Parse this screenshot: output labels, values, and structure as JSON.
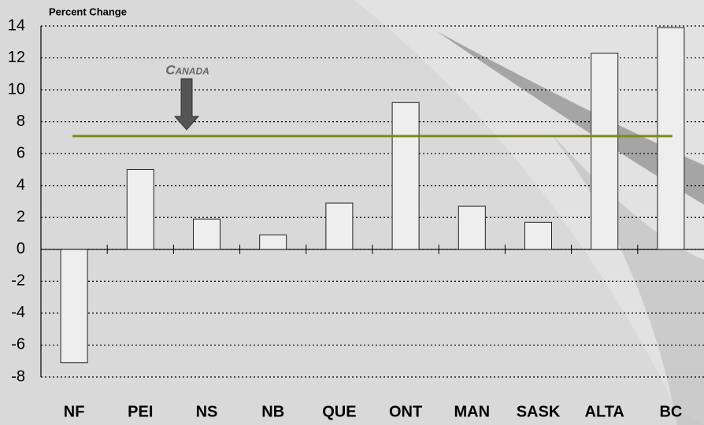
{
  "chart_data": {
    "type": "bar",
    "y_axis_label": "Percent Change",
    "categories": [
      "NF",
      "PEI",
      "NS",
      "NB",
      "QUE",
      "ONT",
      "MAN",
      "SASK",
      "ALTA",
      "BC"
    ],
    "values": [
      -7.1,
      5.0,
      1.9,
      0.9,
      2.9,
      9.2,
      2.7,
      1.7,
      12.3,
      13.9
    ],
    "color": "#eeeeee",
    "ylim": [
      -8,
      14
    ],
    "yticks": [
      -8,
      -6,
      -4,
      -2,
      0,
      2,
      4,
      6,
      8,
      10,
      12,
      14
    ],
    "grid": true,
    "reference_line": {
      "label": "Canada",
      "value": 7.1,
      "color": "#7f8a1a"
    }
  }
}
